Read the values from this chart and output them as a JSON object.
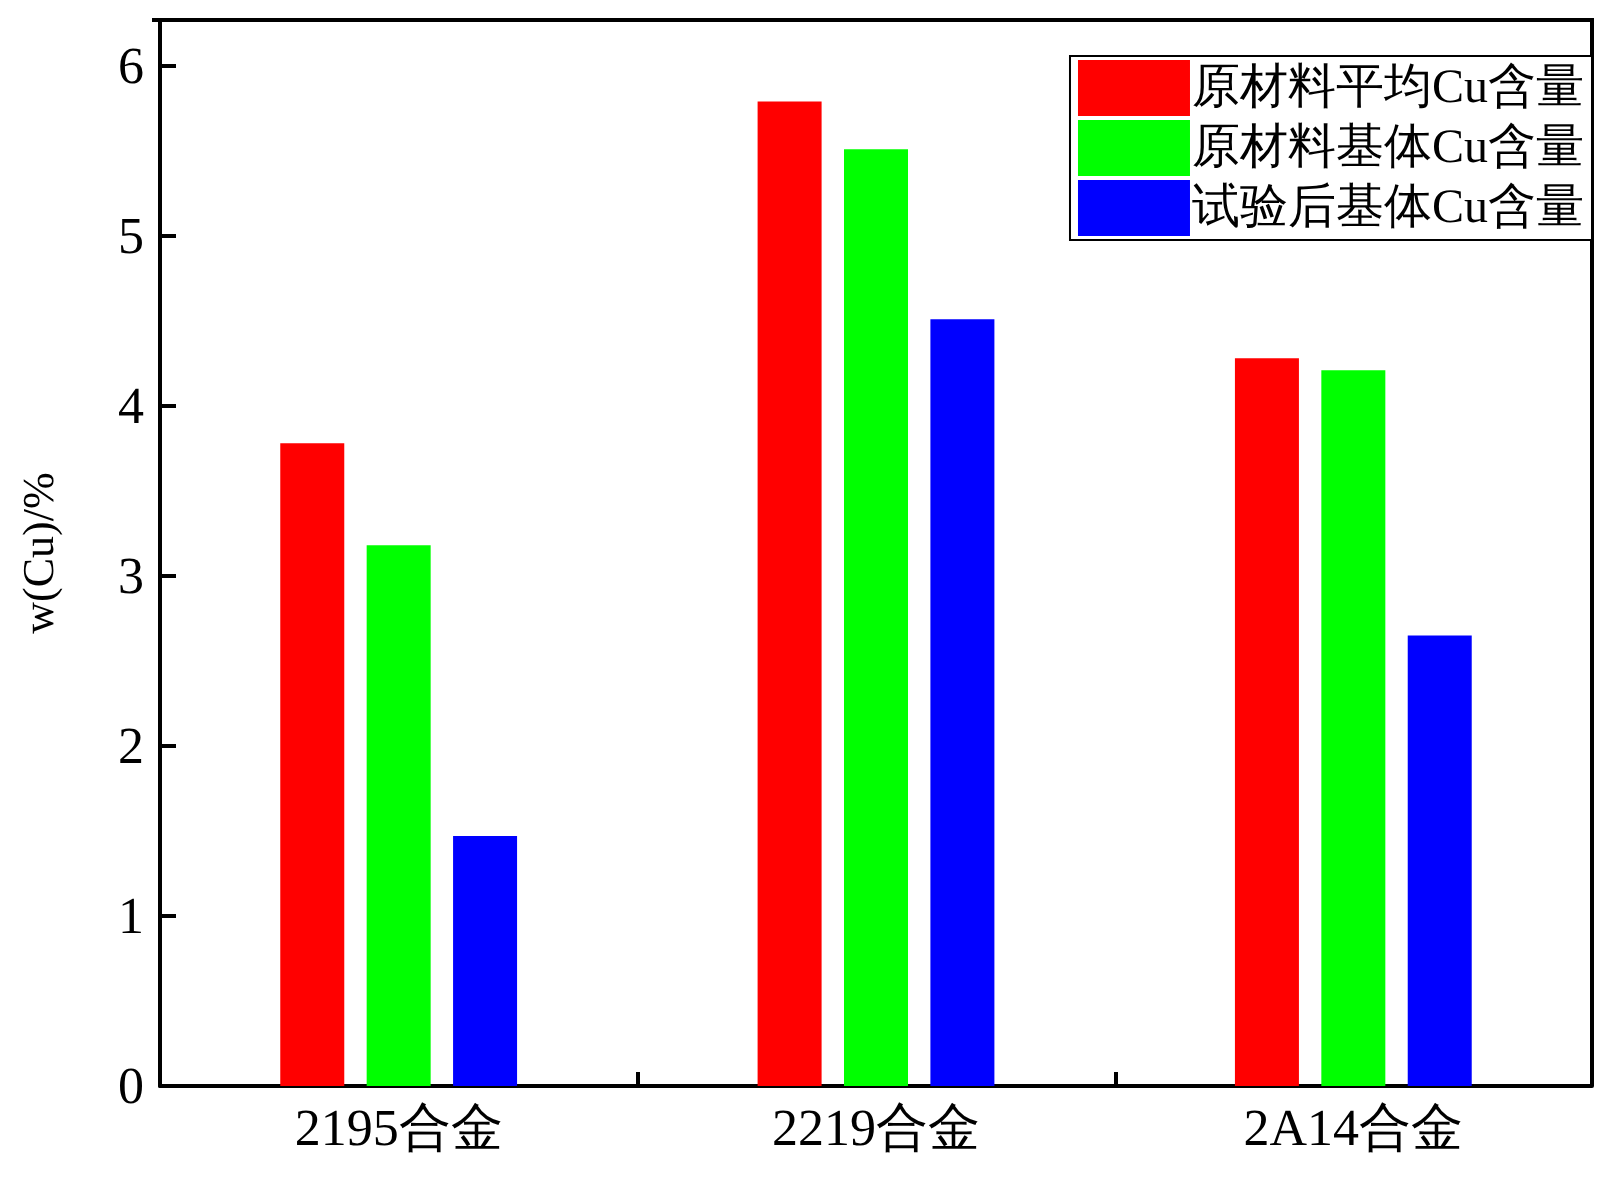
{
  "chart_data": {
    "type": "bar",
    "ylabel": "w(Cu)/%",
    "categories": [
      "2195合金",
      "2219合金",
      "2A14合金"
    ],
    "series": [
      {
        "name": "原材料平均Cu含量",
        "color": "#ff0000",
        "values": [
          3.78,
          5.79,
          4.28
        ]
      },
      {
        "name": "原材料基体Cu含量",
        "color": "#00ff00",
        "values": [
          3.18,
          5.51,
          4.21
        ]
      },
      {
        "name": "试验后基体Cu含量",
        "color": "#0000ff",
        "values": [
          1.47,
          4.51,
          2.65
        ]
      }
    ],
    "ylim": [
      0,
      6.27
    ],
    "yticks": [
      0,
      1,
      2,
      3,
      4,
      5,
      6
    ],
    "grid": false,
    "legend": "top right"
  }
}
